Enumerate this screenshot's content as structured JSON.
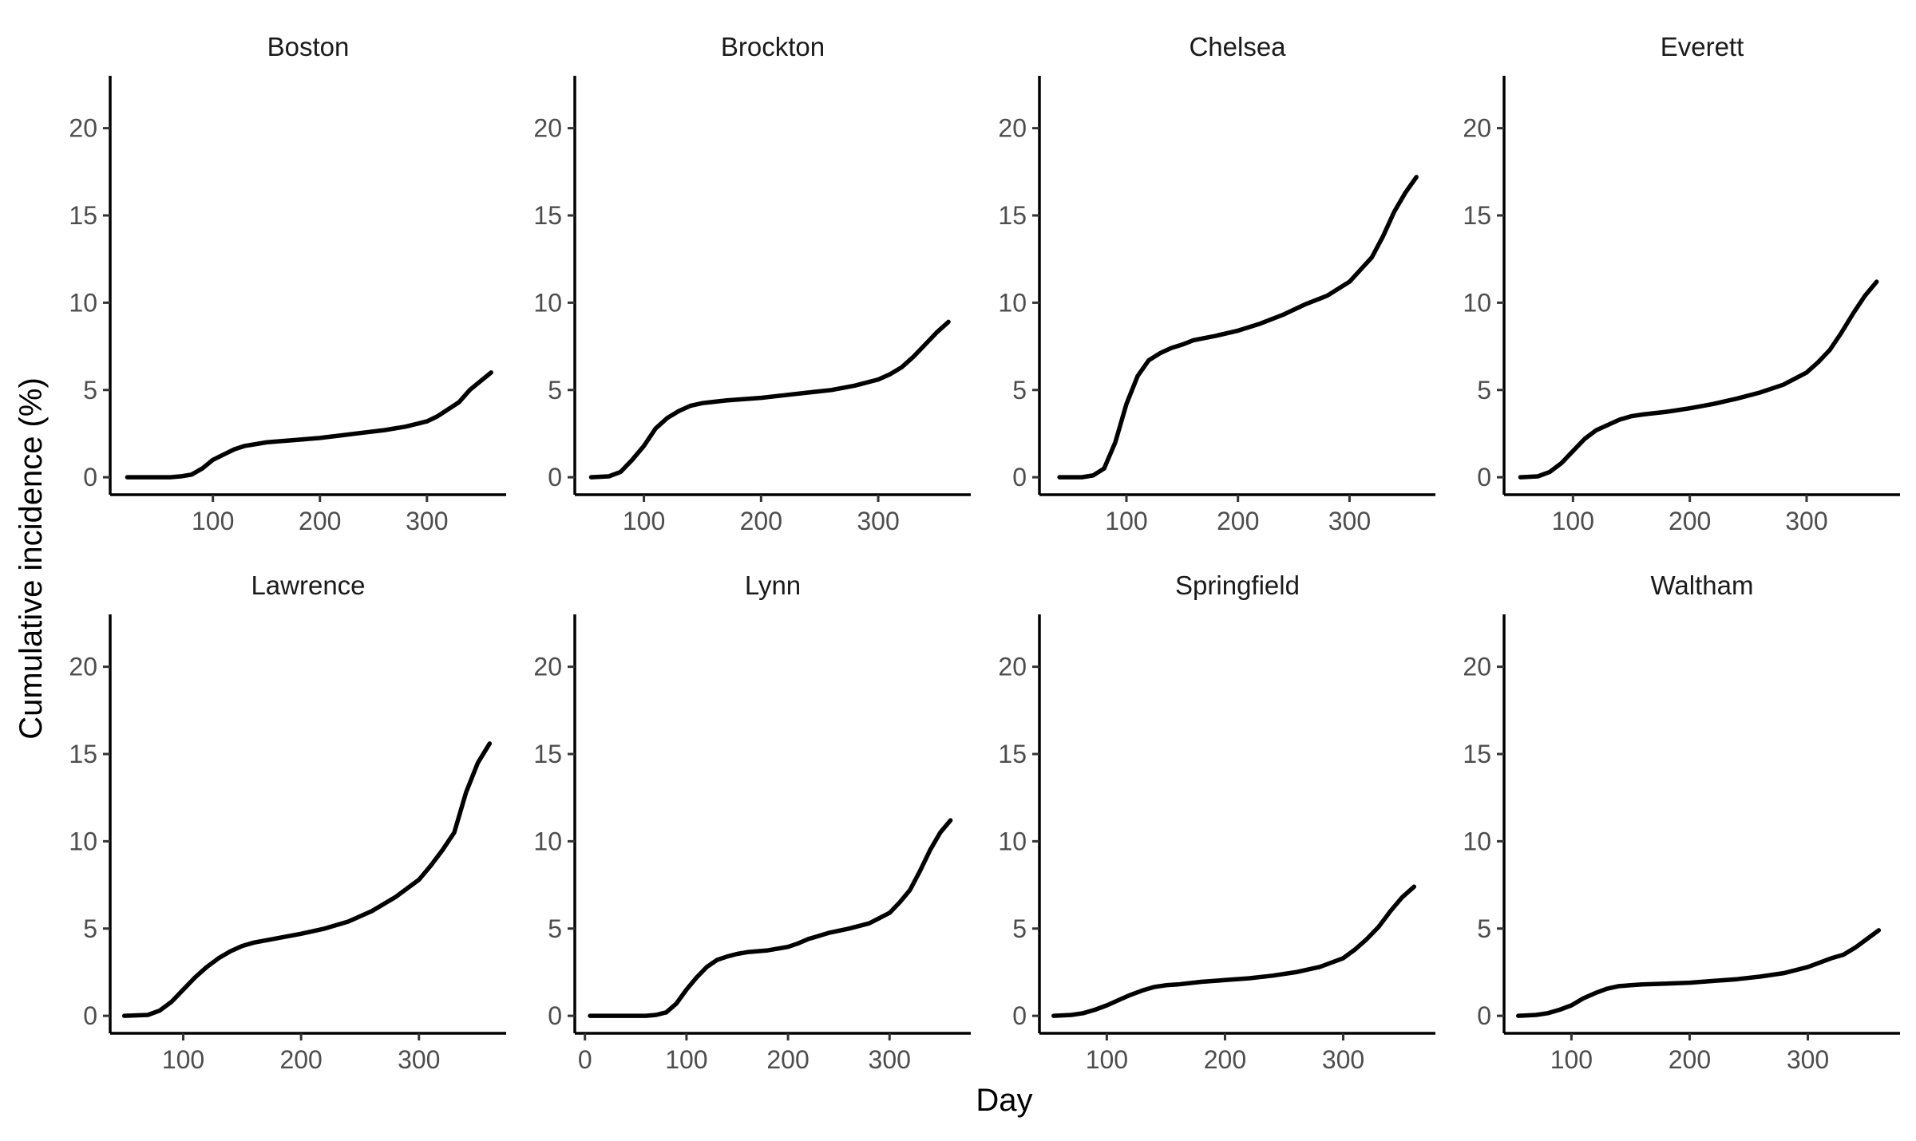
{
  "chart_data": {
    "type": "line",
    "layout": "facet-grid",
    "ncol": 4,
    "xlabel": "Day",
    "ylabel": "Cumulative incidence (%)",
    "ylim": [
      -1,
      23
    ],
    "yticks": [
      0,
      5,
      10,
      15,
      20
    ],
    "grid": false,
    "line_color": "#000000",
    "facets": [
      {
        "title": "Boston",
        "xlim": [
          4,
          374
        ],
        "xticks": [
          100,
          200,
          300
        ],
        "x": [
          20,
          40,
          60,
          70,
          80,
          90,
          100,
          110,
          120,
          130,
          140,
          150,
          160,
          180,
          200,
          220,
          240,
          260,
          280,
          300,
          310,
          320,
          330,
          340,
          350,
          360
        ],
        "y": [
          0,
          0,
          0,
          0.05,
          0.15,
          0.5,
          1.0,
          1.3,
          1.6,
          1.8,
          1.9,
          2.0,
          2.05,
          2.15,
          2.25,
          2.4,
          2.55,
          2.7,
          2.9,
          3.2,
          3.5,
          3.9,
          4.3,
          5.0,
          5.5,
          6.0
        ]
      },
      {
        "title": "Brockton",
        "xlim": [
          41,
          379
        ],
        "xticks": [
          100,
          200,
          300
        ],
        "x": [
          55,
          70,
          80,
          90,
          100,
          110,
          120,
          130,
          140,
          150,
          170,
          200,
          220,
          240,
          260,
          280,
          300,
          310,
          320,
          330,
          340,
          350,
          360
        ],
        "y": [
          0,
          0.05,
          0.3,
          1.0,
          1.8,
          2.8,
          3.4,
          3.8,
          4.1,
          4.25,
          4.4,
          4.55,
          4.7,
          4.85,
          5.0,
          5.25,
          5.6,
          5.9,
          6.3,
          6.9,
          7.6,
          8.3,
          8.9
        ]
      },
      {
        "title": "Chelsea",
        "xlim": [
          22,
          377
        ],
        "xticks": [
          100,
          200,
          300
        ],
        "x": [
          40,
          60,
          70,
          80,
          90,
          100,
          110,
          120,
          130,
          140,
          150,
          160,
          180,
          200,
          220,
          240,
          260,
          280,
          300,
          310,
          320,
          330,
          340,
          350,
          360
        ],
        "y": [
          0,
          0,
          0.1,
          0.5,
          2.0,
          4.2,
          5.8,
          6.7,
          7.1,
          7.4,
          7.6,
          7.85,
          8.1,
          8.4,
          8.8,
          9.3,
          9.9,
          10.4,
          11.2,
          11.9,
          12.6,
          13.8,
          15.2,
          16.3,
          17.2
        ]
      },
      {
        "title": "Everett",
        "xlim": [
          41,
          380
        ],
        "xticks": [
          100,
          200,
          300
        ],
        "x": [
          55,
          70,
          80,
          90,
          100,
          110,
          120,
          130,
          140,
          150,
          160,
          180,
          200,
          220,
          240,
          260,
          280,
          300,
          310,
          320,
          330,
          340,
          350,
          360
        ],
        "y": [
          0,
          0.05,
          0.3,
          0.8,
          1.5,
          2.2,
          2.7,
          3.0,
          3.3,
          3.5,
          3.6,
          3.75,
          3.95,
          4.2,
          4.5,
          4.85,
          5.3,
          6.0,
          6.6,
          7.3,
          8.3,
          9.4,
          10.4,
          11.2
        ]
      },
      {
        "title": "Lawrence",
        "xlim": [
          38,
          374
        ],
        "xticks": [
          100,
          200,
          300
        ],
        "x": [
          50,
          70,
          80,
          90,
          100,
          110,
          120,
          130,
          140,
          150,
          160,
          180,
          200,
          220,
          240,
          260,
          280,
          300,
          310,
          320,
          330,
          340,
          350,
          360
        ],
        "y": [
          0,
          0.05,
          0.3,
          0.8,
          1.5,
          2.2,
          2.8,
          3.3,
          3.7,
          4.0,
          4.2,
          4.45,
          4.7,
          5.0,
          5.4,
          6.0,
          6.8,
          7.8,
          8.6,
          9.5,
          10.5,
          12.8,
          14.5,
          15.6
        ]
      },
      {
        "title": "Lynn",
        "xlim": [
          -10,
          380
        ],
        "xticks": [
          0,
          100,
          200,
          300
        ],
        "x": [
          5,
          20,
          40,
          60,
          70,
          80,
          90,
          100,
          110,
          120,
          130,
          140,
          150,
          160,
          180,
          200,
          210,
          220,
          240,
          260,
          280,
          300,
          310,
          320,
          330,
          340,
          350,
          360
        ],
        "y": [
          0,
          0,
          0,
          0,
          0.05,
          0.2,
          0.7,
          1.5,
          2.2,
          2.8,
          3.2,
          3.4,
          3.55,
          3.65,
          3.75,
          3.95,
          4.15,
          4.4,
          4.75,
          5.0,
          5.3,
          5.9,
          6.5,
          7.2,
          8.3,
          9.5,
          10.5,
          11.2
        ]
      },
      {
        "title": "Springfield",
        "xlim": [
          43,
          378
        ],
        "xticks": [
          100,
          200,
          300
        ],
        "x": [
          55,
          70,
          80,
          90,
          100,
          110,
          120,
          130,
          140,
          150,
          160,
          180,
          200,
          220,
          240,
          260,
          280,
          300,
          310,
          320,
          330,
          340,
          350,
          360
        ],
        "y": [
          0,
          0.05,
          0.15,
          0.35,
          0.6,
          0.9,
          1.2,
          1.45,
          1.65,
          1.75,
          1.8,
          1.95,
          2.05,
          2.15,
          2.3,
          2.5,
          2.8,
          3.3,
          3.8,
          4.4,
          5.1,
          6.0,
          6.8,
          7.4
        ]
      },
      {
        "title": "Waltham",
        "xlim": [
          43,
          378
        ],
        "xticks": [
          100,
          200,
          300
        ],
        "x": [
          55,
          70,
          80,
          90,
          100,
          110,
          120,
          130,
          140,
          150,
          160,
          180,
          200,
          220,
          240,
          260,
          280,
          300,
          310,
          320,
          330,
          340,
          350,
          360
        ],
        "y": [
          0,
          0.05,
          0.15,
          0.35,
          0.6,
          1.0,
          1.3,
          1.55,
          1.7,
          1.75,
          1.8,
          1.85,
          1.9,
          2.0,
          2.1,
          2.25,
          2.45,
          2.8,
          3.05,
          3.3,
          3.5,
          3.9,
          4.4,
          4.9
        ]
      }
    ]
  }
}
